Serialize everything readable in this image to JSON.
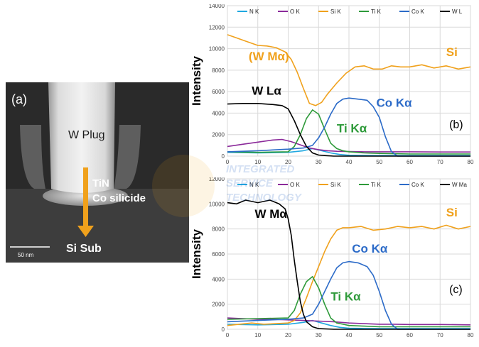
{
  "micrograph": {
    "panel_label": "(a)",
    "labels": {
      "w_plug": "W Plug",
      "tin": "TiN",
      "co_silicide": "Co silicide",
      "si_sub": "Si Sub",
      "scale_bar": "50 nm"
    },
    "colors": {
      "arrow": "#f0a11c",
      "background": "#2c2c2c"
    }
  },
  "watermark": {
    "line1": "INTEGRATED",
    "line2": "SERVICE",
    "line3": "TECHNOLOGY"
  },
  "chart_data": [
    {
      "type": "line",
      "panel_label": "(b)",
      "ylabel": "Intensity",
      "xlim": [
        0,
        80
      ],
      "ylim": [
        0,
        14000
      ],
      "xticks": [
        "0",
        "10",
        "20",
        "30",
        "40",
        "50",
        "60",
        "70",
        "80"
      ],
      "yticks": [
        "0",
        "2000",
        "4000",
        "6000",
        "8000",
        "10000",
        "12000",
        "14000"
      ],
      "grid": true,
      "legend_position": "top",
      "annotations": [
        {
          "text": "(W Mα)",
          "x": 7,
          "y": 8900,
          "color": "#f0a11c"
        },
        {
          "text": "Si",
          "x": 72,
          "y": 9300,
          "color": "#f0a11c"
        },
        {
          "text": "W Lα",
          "x": 8,
          "y": 5700,
          "color": "#000000"
        },
        {
          "text": "Co Kα",
          "x": 49,
          "y": 4600,
          "color": "#2c6bc8"
        },
        {
          "text": "Ti Kα",
          "x": 36,
          "y": 2200,
          "color": "#2e9a3a"
        },
        {
          "text": "(b)",
          "x": 73,
          "y": 2600,
          "color": "#000000"
        }
      ],
      "series": [
        {
          "name": "N K",
          "color": "#1fa8e0",
          "x": [
            0,
            10,
            20,
            25,
            28,
            31,
            34,
            37,
            40,
            45,
            50,
            55,
            60,
            70,
            80
          ],
          "y": [
            350,
            300,
            350,
            500,
            700,
            500,
            300,
            150,
            80,
            60,
            50,
            50,
            50,
            50,
            50
          ]
        },
        {
          "name": "O K",
          "color": "#8b2a9a",
          "x": [
            0,
            5,
            10,
            15,
            18,
            21,
            24,
            27,
            30,
            33,
            36,
            40,
            45,
            50,
            60,
            70,
            80
          ],
          "y": [
            900,
            1100,
            1300,
            1500,
            1550,
            1350,
            1050,
            750,
            600,
            500,
            450,
            420,
            400,
            400,
            400,
            380,
            380
          ]
        },
        {
          "name": "Si K",
          "color": "#f0a11c",
          "x": [
            0,
            3,
            6,
            10,
            13,
            16,
            19,
            21,
            23,
            25,
            27,
            29,
            31,
            33,
            36,
            39,
            42,
            45,
            48,
            51,
            54,
            57,
            60,
            64,
            68,
            72,
            76,
            80
          ],
          "y": [
            11300,
            11000,
            10700,
            10300,
            10250,
            10100,
            9700,
            9000,
            7800,
            6300,
            4900,
            4700,
            5000,
            5800,
            6800,
            7700,
            8300,
            8400,
            8100,
            8100,
            8400,
            8300,
            8300,
            8500,
            8200,
            8400,
            8100,
            8300
          ]
        },
        {
          "name": "Ti K",
          "color": "#2e9a3a",
          "x": [
            0,
            10,
            20,
            22,
            24,
            26,
            28,
            30,
            32,
            34,
            36,
            38,
            40,
            45,
            50,
            60,
            80
          ],
          "y": [
            400,
            350,
            400,
            900,
            2000,
            3500,
            4300,
            3900,
            2500,
            1200,
            700,
            500,
            400,
            300,
            250,
            200,
            200
          ]
        },
        {
          "name": "Co K",
          "color": "#2c6bc8",
          "x": [
            0,
            10,
            20,
            25,
            28,
            30,
            32,
            34,
            36,
            38,
            40,
            43,
            46,
            48,
            50,
            52,
            54,
            56,
            60,
            70,
            80
          ],
          "y": [
            400,
            500,
            650,
            750,
            1000,
            1700,
            2700,
            3900,
            4900,
            5300,
            5400,
            5300,
            5200,
            4600,
            3600,
            1800,
            400,
            0,
            0,
            0,
            0
          ]
        },
        {
          "name": "W L",
          "color": "#000000",
          "x": [
            0,
            5,
            10,
            15,
            18,
            20,
            22,
            24,
            26,
            28,
            30,
            32,
            35,
            40,
            50,
            60,
            80
          ],
          "y": [
            4850,
            4900,
            4900,
            4800,
            4700,
            4400,
            3300,
            2000,
            900,
            300,
            100,
            50,
            0,
            0,
            0,
            0,
            0
          ]
        }
      ]
    },
    {
      "type": "line",
      "panel_label": "(c)",
      "ylabel": "Intensity",
      "xlim": [
        0,
        80
      ],
      "ylim": [
        0,
        12000
      ],
      "xticks": [
        "0",
        "10",
        "20",
        "30",
        "40",
        "50",
        "60",
        "70",
        "80"
      ],
      "yticks": [
        "0",
        "2000",
        "4000",
        "6000",
        "8000",
        "10000",
        "12000"
      ],
      "grid": true,
      "legend_position": "top",
      "annotations": [
        {
          "text": "W Mα",
          "x": 9,
          "y": 8900,
          "color": "#000000"
        },
        {
          "text": "Si",
          "x": 72,
          "y": 9000,
          "color": "#f0a11c"
        },
        {
          "text": "Co Kα",
          "x": 41,
          "y": 6100,
          "color": "#2c6bc8"
        },
        {
          "text": "Ti Kα",
          "x": 34,
          "y": 2300,
          "color": "#2e9a3a"
        },
        {
          "text": "(c)",
          "x": 73,
          "y": 2900,
          "color": "#000000"
        }
      ],
      "series": [
        {
          "name": "N K",
          "color": "#1fa8e0",
          "x": [
            0,
            10,
            20,
            25,
            28,
            31,
            34,
            37,
            40,
            45,
            50,
            55,
            60,
            70,
            80
          ],
          "y": [
            400,
            350,
            400,
            550,
            700,
            500,
            300,
            150,
            80,
            60,
            50,
            50,
            50,
            50,
            50
          ]
        },
        {
          "name": "O K",
          "color": "#8b2a9a",
          "x": [
            0,
            5,
            10,
            15,
            20,
            25,
            30,
            35,
            40,
            45,
            50,
            55,
            60,
            70,
            80
          ],
          "y": [
            900,
            850,
            800,
            800,
            750,
            700,
            650,
            600,
            500,
            450,
            400,
            400,
            380,
            380,
            350
          ]
        },
        {
          "name": "Si K",
          "color": "#f0a11c",
          "x": [
            0,
            4,
            8,
            12,
            16,
            20,
            22,
            24,
            26,
            28,
            30,
            32,
            34,
            36,
            38,
            40,
            44,
            48,
            52,
            56,
            60,
            64,
            68,
            72,
            76,
            80
          ],
          "y": [
            300,
            400,
            500,
            400,
            450,
            500,
            700,
            1300,
            2500,
            3800,
            5000,
            6200,
            7200,
            7900,
            8100,
            8100,
            8200,
            7900,
            8000,
            8200,
            8100,
            8200,
            8000,
            8300,
            8000,
            8200
          ]
        },
        {
          "name": "Ti K",
          "color": "#2e9a3a",
          "x": [
            0,
            10,
            20,
            22,
            24,
            26,
            28,
            30,
            32,
            34,
            36,
            38,
            40,
            45,
            50,
            60,
            80
          ],
          "y": [
            800,
            850,
            900,
            1500,
            2800,
            3800,
            4200,
            3300,
            2000,
            900,
            500,
            400,
            300,
            250,
            200,
            200,
            200
          ]
        },
        {
          "name": "Co K",
          "color": "#2c6bc8",
          "x": [
            0,
            10,
            20,
            25,
            28,
            30,
            32,
            34,
            36,
            38,
            40,
            43,
            46,
            48,
            50,
            52,
            54,
            56,
            60,
            70,
            80
          ],
          "y": [
            600,
            700,
            800,
            900,
            1200,
            2000,
            3000,
            4000,
            4900,
            5300,
            5400,
            5300,
            5000,
            4300,
            3000,
            1500,
            400,
            0,
            0,
            0,
            0
          ]
        },
        {
          "name": "W Ma",
          "color": "#000000",
          "x": [
            0,
            3,
            6,
            10,
            14,
            17,
            19,
            20,
            21,
            22,
            23,
            24,
            25,
            26,
            28,
            30,
            35,
            40,
            50,
            60,
            80
          ],
          "y": [
            10100,
            10000,
            10300,
            10100,
            10300,
            10000,
            9600,
            8800,
            7500,
            5500,
            3800,
            2200,
            1200,
            600,
            200,
            50,
            0,
            0,
            0,
            0,
            0
          ]
        }
      ]
    }
  ]
}
